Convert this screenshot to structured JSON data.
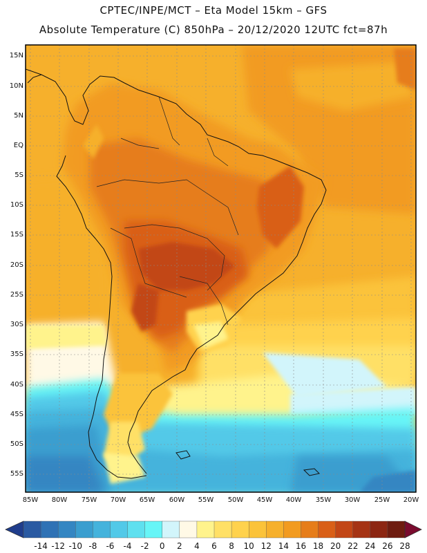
{
  "header": {
    "line1": "CPTEC/INPE/MCT  –   Eta Model 15km  –  GFS",
    "line2": "Absolute Temperature (C) 850hPa – 20/12/2020 12UTC fct=87h"
  },
  "map": {
    "lat_labels": [
      "15N",
      "10N",
      "5N",
      "EQ",
      "5S",
      "10S",
      "15S",
      "20S",
      "25S",
      "30S",
      "35S",
      "40S",
      "45S",
      "50S",
      "55S"
    ],
    "lon_labels": [
      "85W",
      "80W",
      "75W",
      "70W",
      "65W",
      "60W",
      "55W",
      "50W",
      "45W",
      "40W",
      "35W",
      "30W",
      "25W",
      "20W"
    ]
  },
  "colorbar": {
    "labels": [
      "-14",
      "-12",
      "-10",
      "-8",
      "-6",
      "-4",
      "-2",
      "0",
      "2",
      "4",
      "6",
      "8",
      "10",
      "12",
      "14",
      "16",
      "18",
      "20",
      "22",
      "24",
      "26",
      "28"
    ],
    "colors": {
      "c1": "#1f3d8c",
      "c2": "#2a5aa2",
      "c3": "#2f72b5",
      "c4": "#3486c2",
      "c5": "#3a9ecf",
      "c6": "#44b3dc",
      "c7": "#52c9e8",
      "c8": "#5fe0ef",
      "c9": "#67f5f7",
      "c10": "#d2f5fb",
      "c11": "#fff9e6",
      "c12": "#fff38c",
      "c13": "#ffe066",
      "c14": "#ffd24d",
      "c15": "#fbc33a",
      "c16": "#f6b02c",
      "c17": "#f29b20",
      "c18": "#e67d1a",
      "c19": "#d95f17",
      "c20": "#c24616",
      "c21": "#a53314",
      "c22": "#8c2612",
      "c23": "#6e1c10",
      "c24": "#7a0b2e"
    }
  }
}
